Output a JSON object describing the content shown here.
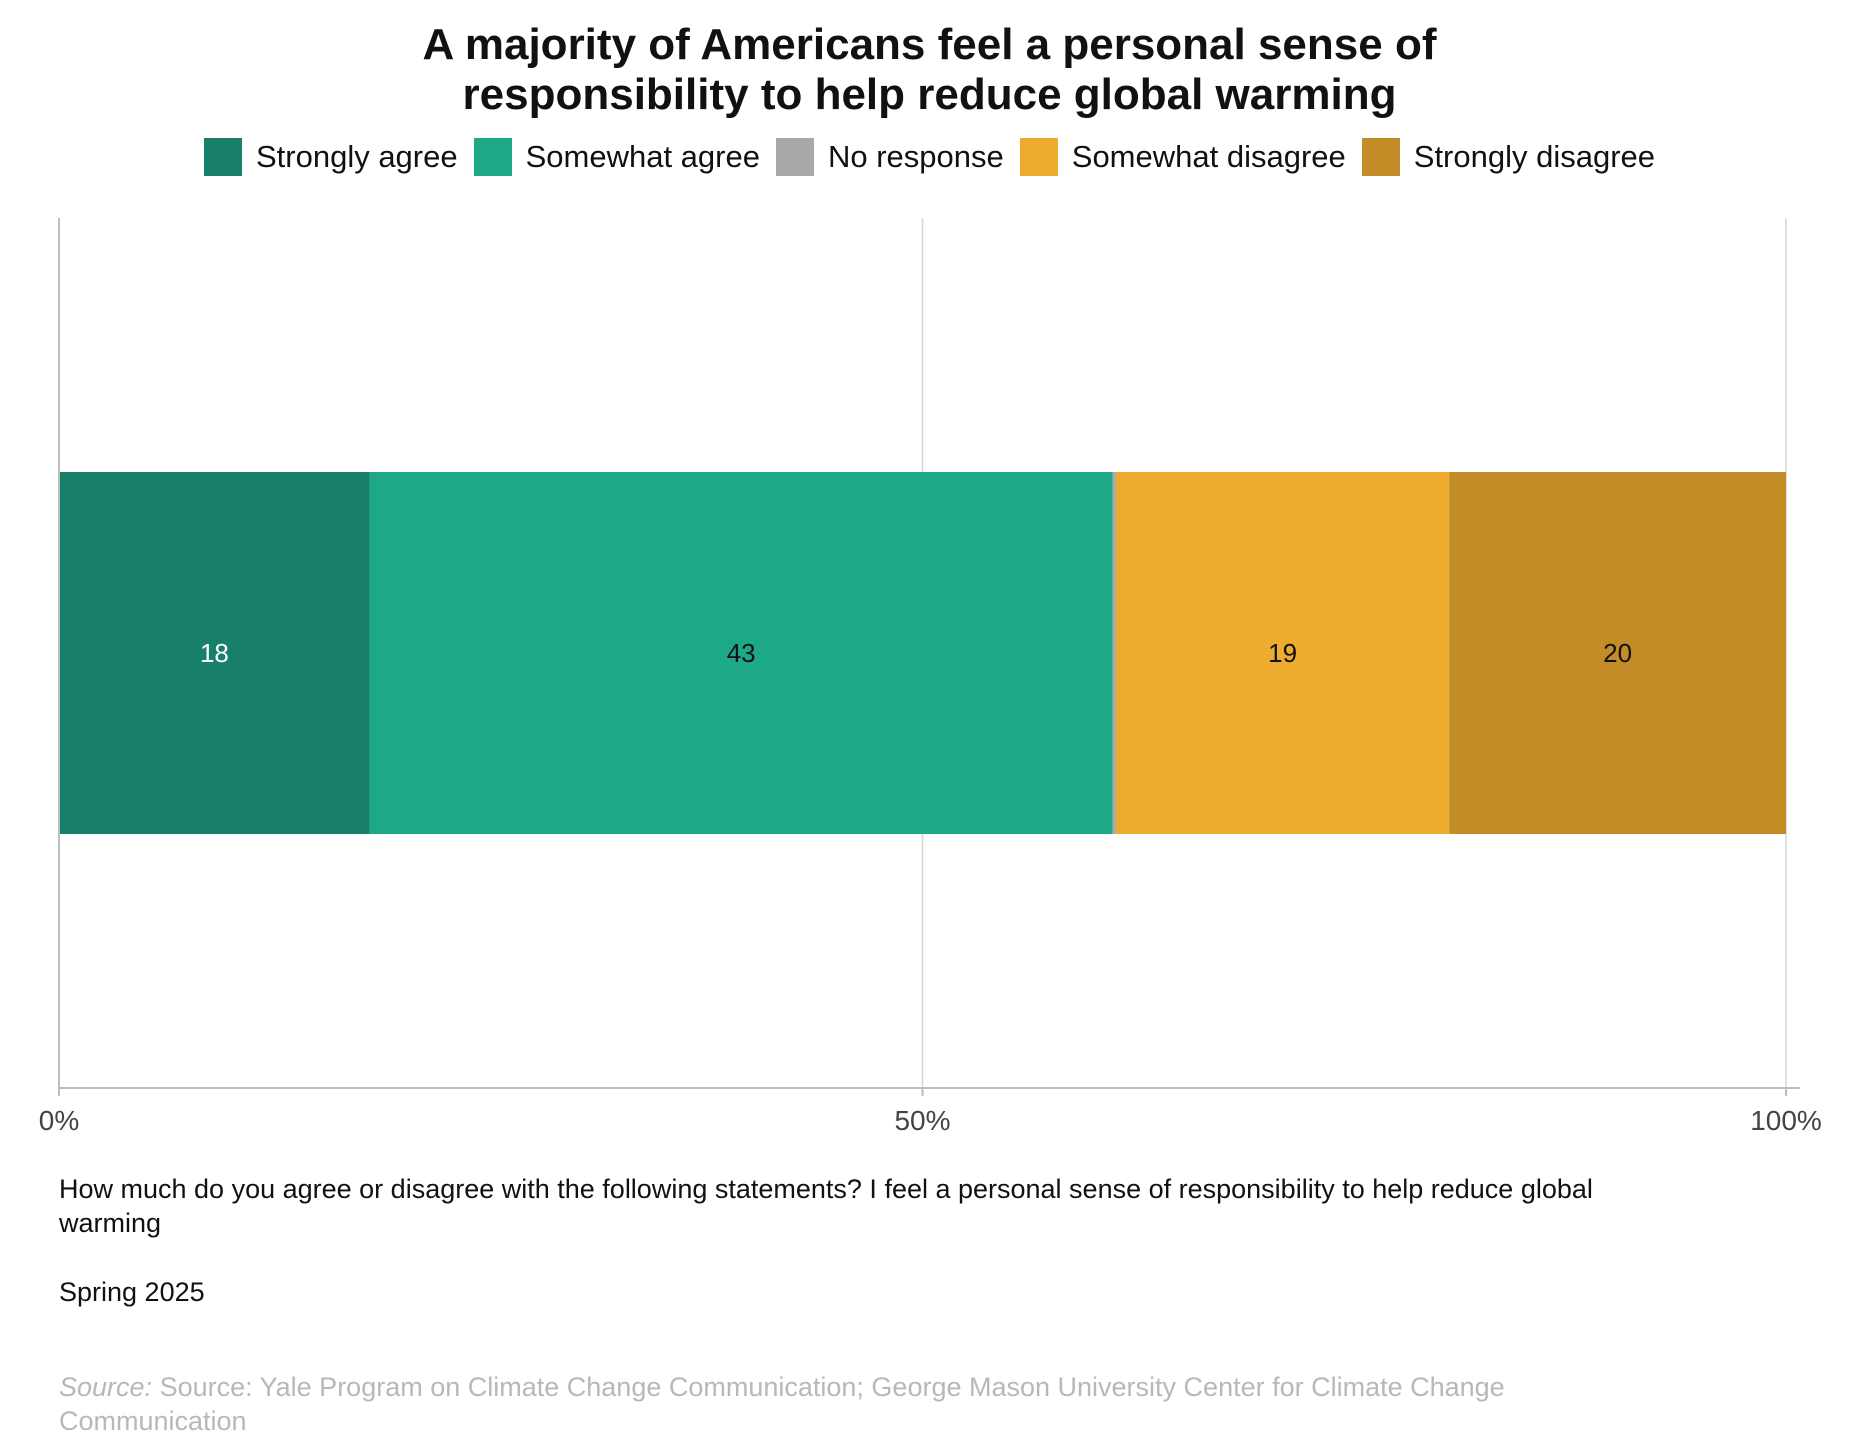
{
  "title_lines": [
    "A majority of Americans feel a personal sense of",
    "responsibility to help reduce global warming"
  ],
  "legend": [
    {
      "label": "Strongly agree",
      "color": "#18806A"
    },
    {
      "label": "Somewhat agree",
      "color": "#1DA887"
    },
    {
      "label": "No response",
      "color": "#A9A9A9"
    },
    {
      "label": "Somewhat disagree",
      "color": "#EDAC2E"
    },
    {
      "label": "Strongly disagree",
      "color": "#C28D27"
    }
  ],
  "chart_data": {
    "type": "bar",
    "orientation": "horizontal",
    "stacked": true,
    "categories": [
      ""
    ],
    "series": [
      {
        "name": "Strongly agree",
        "values": [
          18
        ],
        "color": "#18806A",
        "label": "18",
        "label_color": "#ffffff"
      },
      {
        "name": "Somewhat agree",
        "values": [
          43
        ],
        "color": "#1DA887",
        "label": "43",
        "label_color": "#111111"
      },
      {
        "name": "No response",
        "values": [
          0.2
        ],
        "color": "#A9A9A9",
        "label": "",
        "label_color": "#111111"
      },
      {
        "name": "Somewhat disagree",
        "values": [
          19.3
        ],
        "color": "#EDAC2E",
        "label": "19",
        "label_color": "#111111"
      },
      {
        "name": "Strongly disagree",
        "values": [
          19.5
        ],
        "color": "#C28D27",
        "label": "20",
        "label_color": "#111111"
      }
    ],
    "xlim": [
      0,
      100
    ],
    "xticks": [
      {
        "value": 0,
        "label": "0%"
      },
      {
        "value": 50,
        "label": "50%"
      },
      {
        "value": 100,
        "label": "100%"
      }
    ],
    "grid": "vertical",
    "legend_position": "top"
  },
  "question": "How much do you agree or disagree with the following statements? I feel a personal sense of responsibility to help reduce global warming",
  "period": "Spring 2025",
  "source_prefix": "Source:",
  "source_text": "Source: Yale Program on Climate Change Communication; George Mason University Center for Climate Change Communication"
}
